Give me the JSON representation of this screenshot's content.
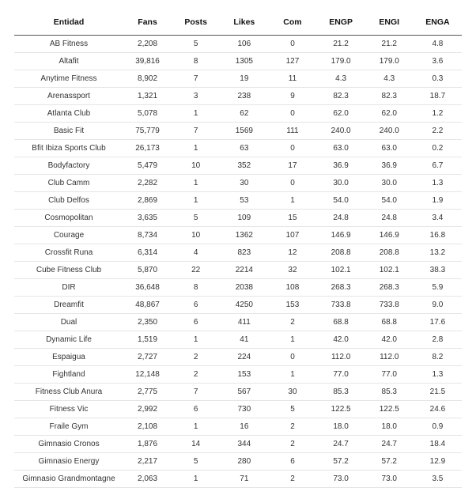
{
  "table": {
    "columns": [
      "Entidad",
      "Fans",
      "Posts",
      "Likes",
      "Com",
      "ENGP",
      "ENGI",
      "ENGA"
    ],
    "col_classes": [
      "col-entidad",
      "col-num",
      "col-num",
      "col-num",
      "col-num",
      "col-num",
      "col-num",
      "col-num"
    ],
    "header_border_color": "#555555",
    "row_border_color": "#e5e5e5",
    "header_fontsize": 10.5,
    "cell_fontsize": 10,
    "background_color": "#ffffff",
    "text_color": "#333333",
    "rows": [
      [
        "AB Fitness",
        "2,208",
        "5",
        "106",
        "0",
        "21.2",
        "21.2",
        "4.8"
      ],
      [
        "Altafit",
        "39,816",
        "8",
        "1305",
        "127",
        "179.0",
        "179.0",
        "3.6"
      ],
      [
        "Anytime Fitness",
        "8,902",
        "7",
        "19",
        "11",
        "4.3",
        "4.3",
        "0.3"
      ],
      [
        "Arenassport",
        "1,321",
        "3",
        "238",
        "9",
        "82.3",
        "82.3",
        "18.7"
      ],
      [
        "Atlanta Club",
        "5,078",
        "1",
        "62",
        "0",
        "62.0",
        "62.0",
        "1.2"
      ],
      [
        "Basic Fit",
        "75,779",
        "7",
        "1569",
        "111",
        "240.0",
        "240.0",
        "2.2"
      ],
      [
        "Bfit Ibiza Sports Club",
        "26,173",
        "1",
        "63",
        "0",
        "63.0",
        "63.0",
        "0.2"
      ],
      [
        "Bodyfactory",
        "5,479",
        "10",
        "352",
        "17",
        "36.9",
        "36.9",
        "6.7"
      ],
      [
        "Club Camm",
        "2,282",
        "1",
        "30",
        "0",
        "30.0",
        "30.0",
        "1.3"
      ],
      [
        "Club Delfos",
        "2,869",
        "1",
        "53",
        "1",
        "54.0",
        "54.0",
        "1.9"
      ],
      [
        "Cosmopolitan",
        "3,635",
        "5",
        "109",
        "15",
        "24.8",
        "24.8",
        "3.4"
      ],
      [
        "Courage",
        "8,734",
        "10",
        "1362",
        "107",
        "146.9",
        "146.9",
        "16.8"
      ],
      [
        "Crossfit Runa",
        "6,314",
        "4",
        "823",
        "12",
        "208.8",
        "208.8",
        "13.2"
      ],
      [
        "Cube Fitness Club",
        "5,870",
        "22",
        "2214",
        "32",
        "102.1",
        "102.1",
        "38.3"
      ],
      [
        "DIR",
        "36,648",
        "8",
        "2038",
        "108",
        "268.3",
        "268.3",
        "5.9"
      ],
      [
        "Dreamfit",
        "48,867",
        "6",
        "4250",
        "153",
        "733.8",
        "733.8",
        "9.0"
      ],
      [
        "Dual",
        "2,350",
        "6",
        "411",
        "2",
        "68.8",
        "68.8",
        "17.6"
      ],
      [
        "Dynamic Life",
        "1,519",
        "1",
        "41",
        "1",
        "42.0",
        "42.0",
        "2.8"
      ],
      [
        "Espaigua",
        "2,727",
        "2",
        "224",
        "0",
        "112.0",
        "112.0",
        "8.2"
      ],
      [
        "Fightland",
        "12,148",
        "2",
        "153",
        "1",
        "77.0",
        "77.0",
        "1.3"
      ],
      [
        "Fitness Club Anura",
        "2,775",
        "7",
        "567",
        "30",
        "85.3",
        "85.3",
        "21.5"
      ],
      [
        "Fitness Vic",
        "2,992",
        "6",
        "730",
        "5",
        "122.5",
        "122.5",
        "24.6"
      ],
      [
        "Fraile Gym",
        "2,108",
        "1",
        "16",
        "2",
        "18.0",
        "18.0",
        "0.9"
      ],
      [
        "Gimnasio Cronos",
        "1,876",
        "14",
        "344",
        "2",
        "24.7",
        "24.7",
        "18.4"
      ],
      [
        "Gimnasio Energy",
        "2,217",
        "5",
        "280",
        "6",
        "57.2",
        "57.2",
        "12.9"
      ],
      [
        "Gimnasio Grandmontagne",
        "2,063",
        "1",
        "71",
        "2",
        "73.0",
        "73.0",
        "3.5"
      ]
    ]
  }
}
